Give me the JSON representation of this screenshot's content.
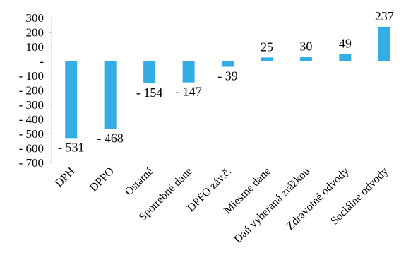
{
  "chart_data": {
    "type": "bar",
    "categories": [
      "DPH",
      "DPPO",
      "Ostatné",
      "Spotrebné dane",
      "DPFO záv.č.",
      "Miestne dane",
      "Daň vyberaná zrážkou",
      "Zdravotné odvody",
      "Sociálne odvody"
    ],
    "values": [
      -531,
      -468,
      -154,
      -147,
      -39,
      25,
      30,
      49,
      237
    ],
    "data_labels": [
      "- 531",
      "- 468",
      "- 154",
      "- 147",
      "- 39",
      "25",
      "30",
      "49",
      "237"
    ],
    "ylim": [
      -700,
      300
    ],
    "yticks": [
      300,
      200,
      100,
      0,
      -100,
      -200,
      -300,
      -400,
      -500,
      -600,
      -700
    ],
    "ytick_labels": [
      "300",
      "200",
      "100",
      "-",
      "- 100",
      "- 200",
      "- 300",
      "- 400",
      "- 500",
      "- 600",
      "- 700"
    ],
    "grid": false,
    "bar_color": "#33ADE4",
    "axis_color": "#D0D0D0"
  }
}
